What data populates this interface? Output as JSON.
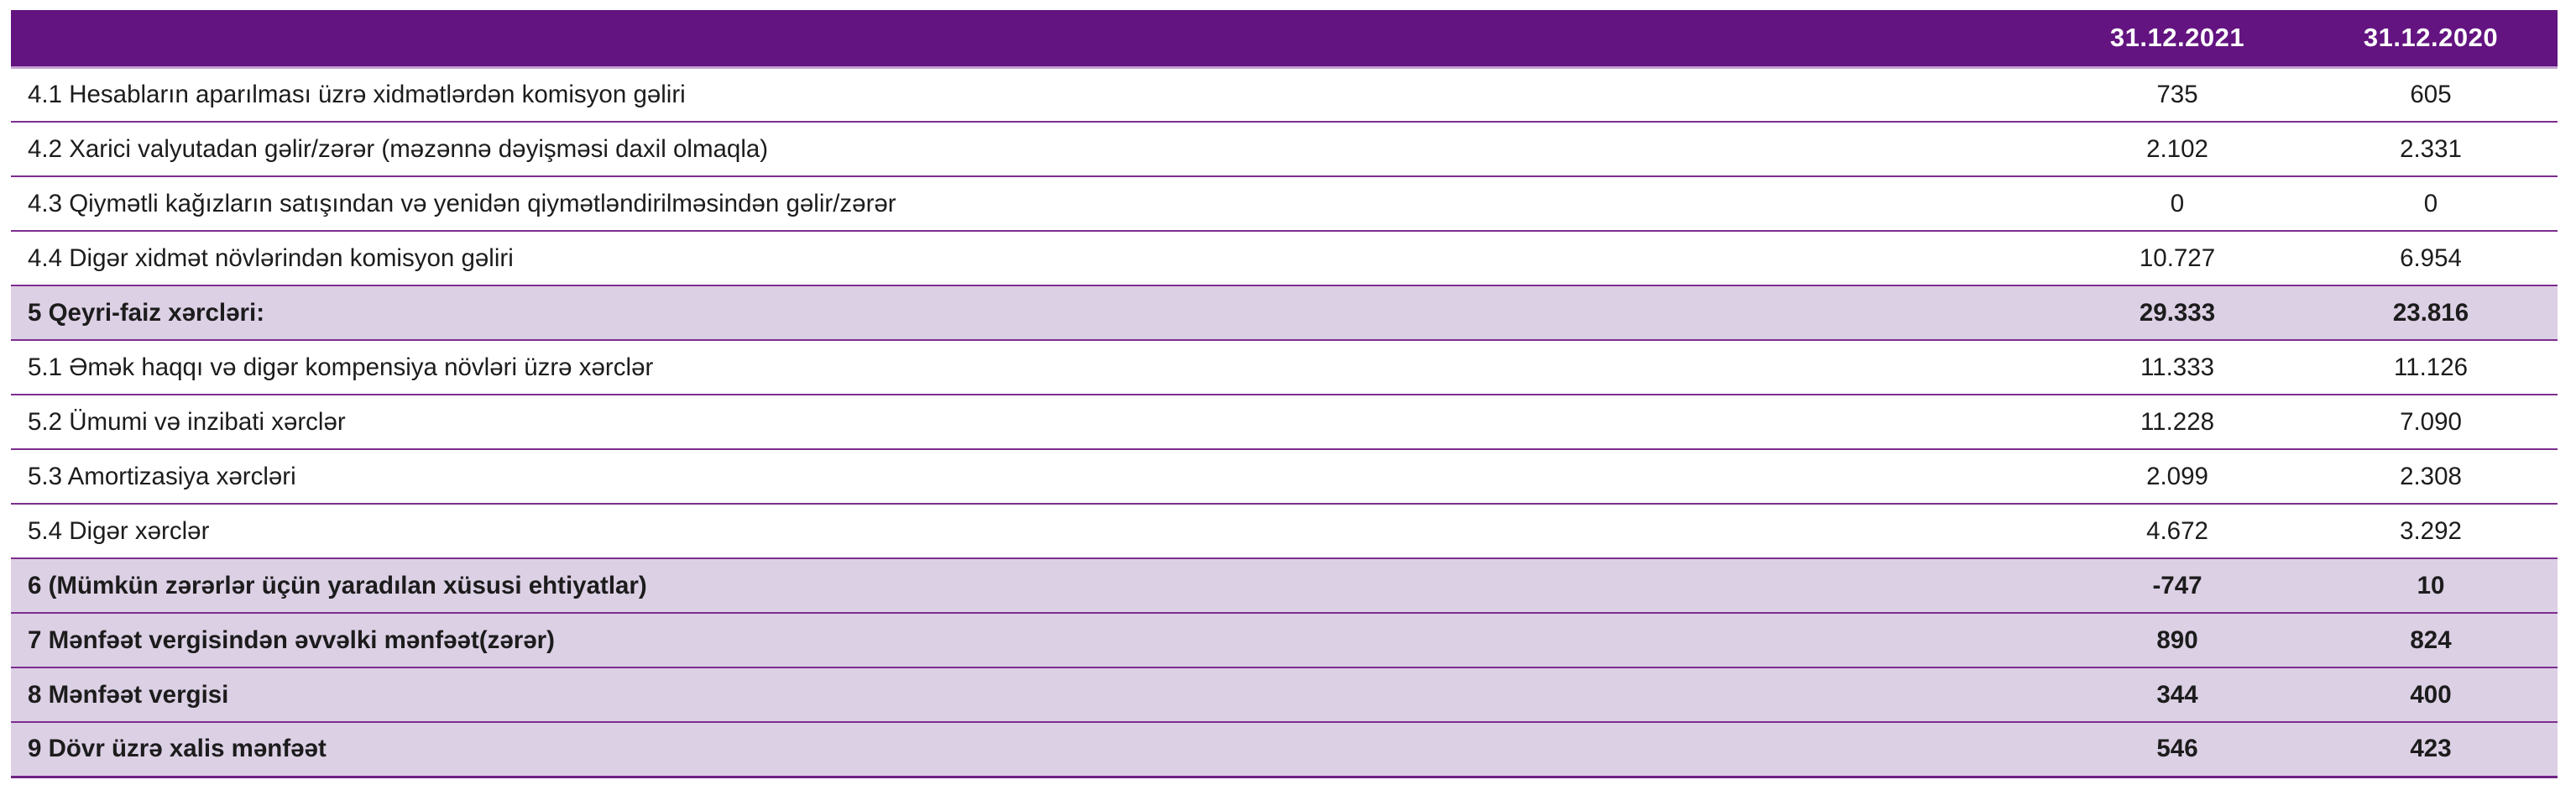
{
  "table": {
    "columns": [
      "",
      "31.12.2021",
      "31.12.2020"
    ],
    "rows": [
      {
        "label": "4.1 Hesabların aparılması üzrə xidmətlərdən komisyon gəliri",
        "v2021": "735",
        "v2020": "605",
        "bold": false
      },
      {
        "label": "4.2 Xarici valyutadan gəlir/zərər (məzənnə dəyişməsi daxil olmaqla)",
        "v2021": "2.102",
        "v2020": "2.331",
        "bold": false
      },
      {
        "label": "4.3 Qiymətli kağızların satışından və yenidən qiymətləndirilməsindən gəlir/zərər",
        "v2021": "0",
        "v2020": "0",
        "bold": false
      },
      {
        "label": "4.4 Digər xidmət növlərindən komisyon gəliri",
        "v2021": "10.727",
        "v2020": "6.954",
        "bold": false
      },
      {
        "label": "5 Qeyri-faiz xərcləri:",
        "v2021": "29.333",
        "v2020": "23.816",
        "bold": true
      },
      {
        "label": "5.1 Əmək haqqı və digər kompensiya növləri üzrə xərclər",
        "v2021": "11.333",
        "v2020": "11.126",
        "bold": false
      },
      {
        "label": "5.2 Ümumi və inzibati xərclər",
        "v2021": "11.228",
        "v2020": "7.090",
        "bold": false
      },
      {
        "label": "5.3 Amortizasiya xərcləri",
        "v2021": "2.099",
        "v2020": "2.308",
        "bold": false
      },
      {
        "label": "5.4 Digər xərclər",
        "v2021": "4.672",
        "v2020": "3.292",
        "bold": false
      },
      {
        "label": "6 (Mümkün zərərlər üçün yaradılan xüsusi ehtiyatlar)",
        "v2021": "-747",
        "v2020": "10",
        "bold": true
      },
      {
        "label": "7 Mənfəət vergisindən əvvəlki mənfəət(zərər)",
        "v2021": "890",
        "v2020": "824",
        "bold": true
      },
      {
        "label": "8 Mənfəət vergisi",
        "v2021": "344",
        "v2020": "400",
        "bold": true
      },
      {
        "label": "9 Dövr üzrə xalis mənfəət",
        "v2021": "546",
        "v2020": "423",
        "bold": true
      }
    ],
    "colors": {
      "header_bg": "#631480",
      "header_text": "#ffffff",
      "highlight_row_bg": "#dcd0e5",
      "row_border": "#7c2e8e",
      "body_text": "#1c1c1c"
    }
  }
}
